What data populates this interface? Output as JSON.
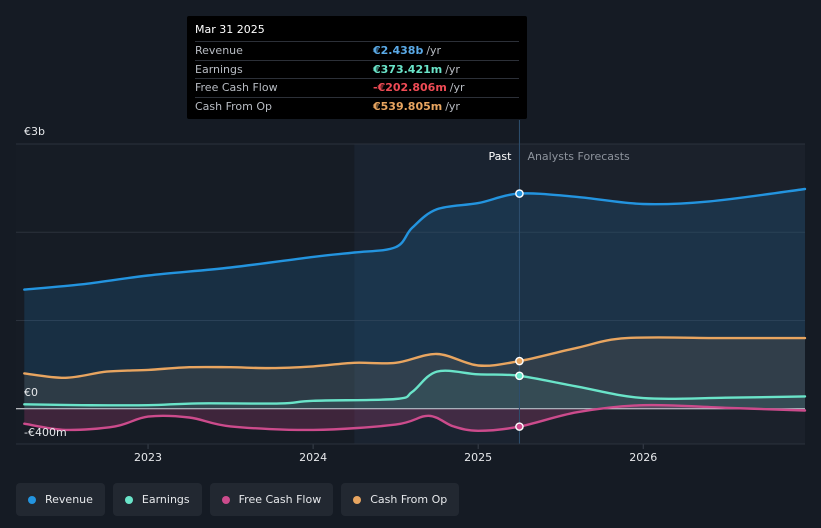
{
  "colors": {
    "background": "#151b24",
    "revenue": "#2394df",
    "earnings": "#6ae4c9",
    "free_cash_flow": "#cc4b8c",
    "cash_from_op": "#e8a560"
  },
  "tooltip": {
    "date": "Mar 31 2025",
    "rows": [
      {
        "label": "Revenue",
        "value": "€2.438b",
        "unit": "/yr",
        "color": "#5aa9e6"
      },
      {
        "label": "Earnings",
        "value": "€373.421m",
        "unit": "/yr",
        "color": "#6ae4c9"
      },
      {
        "label": "Free Cash Flow",
        "value": "-€202.806m",
        "unit": "/yr",
        "color": "#ef4b55"
      },
      {
        "label": "Cash From Op",
        "value": "€539.805m",
        "unit": "/yr",
        "color": "#e8a560"
      }
    ]
  },
  "labels": {
    "past": "Past",
    "forecast": "Analysts Forecasts"
  },
  "legend": [
    {
      "label": "Revenue",
      "color": "#2394df"
    },
    {
      "label": "Earnings",
      "color": "#6ae4c9"
    },
    {
      "label": "Free Cash Flow",
      "color": "#cc4b8c"
    },
    {
      "label": "Cash From Op",
      "color": "#e8a560"
    }
  ],
  "chart_data": {
    "type": "line",
    "title": "",
    "xlabel": "",
    "ylabel": "",
    "unit": "EUR",
    "x_ticks": [
      2023,
      2024,
      2025,
      2026
    ],
    "x_tick_labels": [
      "2023",
      "2024",
      "2025",
      "2026"
    ],
    "xlim": [
      2022.2,
      2026.98
    ],
    "ylim": [
      -400,
      3000
    ],
    "y_tick_values": [
      3000,
      0,
      -400
    ],
    "y_tick_labels": [
      "€3b",
      "€0",
      "-€400m"
    ],
    "y_gridlines": [
      3000,
      2000,
      1000,
      0,
      -400
    ],
    "past_end": 2025.25,
    "highlight_start": 2024.25,
    "series": [
      {
        "name": "Revenue",
        "key": "revenue",
        "points": [
          [
            2022.25,
            1350
          ],
          [
            2022.6,
            1410
          ],
          [
            2023.0,
            1510
          ],
          [
            2023.5,
            1600
          ],
          [
            2024.0,
            1720
          ],
          [
            2024.25,
            1770
          ],
          [
            2024.5,
            1830
          ],
          [
            2024.6,
            2050
          ],
          [
            2024.75,
            2260
          ],
          [
            2025.0,
            2330
          ],
          [
            2025.25,
            2438
          ],
          [
            2025.6,
            2400
          ],
          [
            2026.0,
            2320
          ],
          [
            2026.4,
            2350
          ],
          [
            2026.98,
            2490
          ]
        ]
      },
      {
        "name": "Earnings",
        "key": "earnings",
        "points": [
          [
            2022.25,
            50
          ],
          [
            2022.6,
            40
          ],
          [
            2023.0,
            40
          ],
          [
            2023.3,
            60
          ],
          [
            2023.8,
            60
          ],
          [
            2024.0,
            90
          ],
          [
            2024.5,
            110
          ],
          [
            2024.6,
            190
          ],
          [
            2024.75,
            420
          ],
          [
            2025.0,
            390
          ],
          [
            2025.25,
            373
          ],
          [
            2025.6,
            250
          ],
          [
            2026.0,
            120
          ],
          [
            2026.5,
            125
          ],
          [
            2026.98,
            140
          ]
        ]
      },
      {
        "name": "Free Cash Flow",
        "key": "free_cash_flow",
        "points": [
          [
            2022.25,
            -170
          ],
          [
            2022.5,
            -240
          ],
          [
            2022.8,
            -200
          ],
          [
            2023.0,
            -90
          ],
          [
            2023.25,
            -100
          ],
          [
            2023.5,
            -200
          ],
          [
            2024.0,
            -240
          ],
          [
            2024.5,
            -180
          ],
          [
            2024.7,
            -80
          ],
          [
            2024.85,
            -200
          ],
          [
            2025.0,
            -250
          ],
          [
            2025.25,
            -203
          ],
          [
            2025.6,
            -40
          ],
          [
            2026.0,
            40
          ],
          [
            2026.5,
            10
          ],
          [
            2026.98,
            -20
          ]
        ]
      },
      {
        "name": "Cash From Op",
        "key": "cash_from_op",
        "points": [
          [
            2022.25,
            400
          ],
          [
            2022.5,
            350
          ],
          [
            2022.75,
            420
          ],
          [
            2023.0,
            440
          ],
          [
            2023.25,
            470
          ],
          [
            2023.5,
            470
          ],
          [
            2023.75,
            460
          ],
          [
            2024.0,
            480
          ],
          [
            2024.25,
            520
          ],
          [
            2024.5,
            520
          ],
          [
            2024.75,
            620
          ],
          [
            2025.0,
            490
          ],
          [
            2025.25,
            540
          ],
          [
            2025.6,
            690
          ],
          [
            2025.9,
            800
          ],
          [
            2026.5,
            800
          ],
          [
            2026.98,
            800
          ]
        ]
      }
    ]
  }
}
